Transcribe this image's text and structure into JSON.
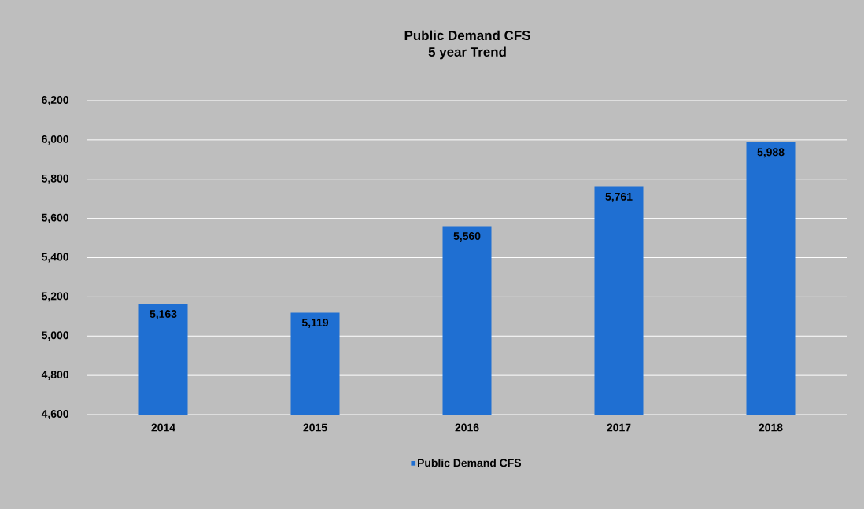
{
  "chart_data": {
    "type": "bar",
    "title": "Public Demand CFS",
    "subtitle": "5 year Trend",
    "categories": [
      "2014",
      "2015",
      "2016",
      "2017",
      "2018"
    ],
    "series": [
      {
        "name": "Public Demand CFS",
        "color": "#1f6fd2",
        "values": [
          5163,
          5119,
          5560,
          5761,
          5988
        ]
      }
    ],
    "value_labels": [
      "5,163",
      "5,119",
      "5,560",
      "5,761",
      "5,988"
    ],
    "ylim": [
      4600,
      6200
    ],
    "yticks": [
      {
        "value": 4600,
        "label": "4,600"
      },
      {
        "value": 4800,
        "label": "4,800"
      },
      {
        "value": 5000,
        "label": "5,000"
      },
      {
        "value": 5200,
        "label": "5,200"
      },
      {
        "value": 5400,
        "label": "5,400"
      },
      {
        "value": 5600,
        "label": "5,600"
      },
      {
        "value": 5800,
        "label": "5,800"
      },
      {
        "value": 6000,
        "label": "6,000"
      },
      {
        "value": 6200,
        "label": "6,200"
      }
    ],
    "grid": "y",
    "legend": "bottom"
  }
}
